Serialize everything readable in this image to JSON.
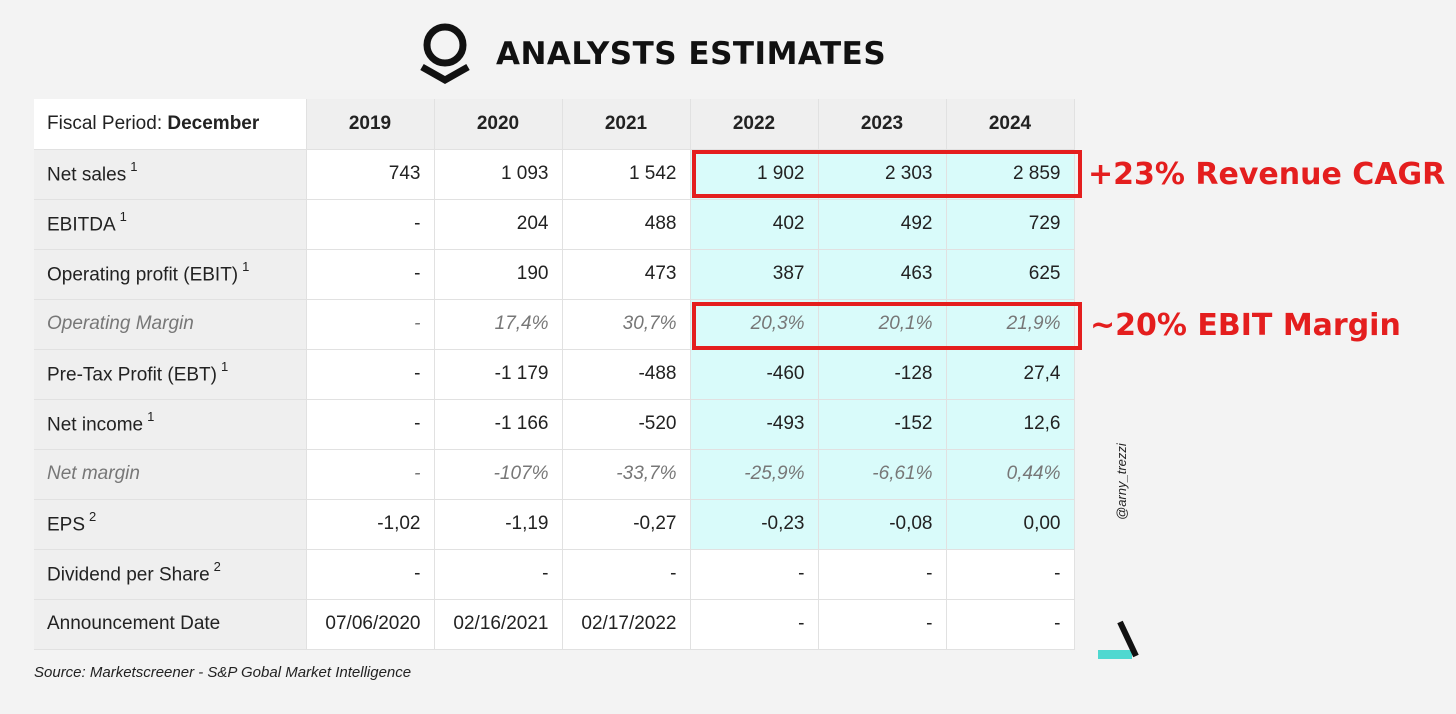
{
  "header": {
    "title": "ANALYSTS ESTIMATES",
    "logo_icon": "palantir-logo-icon"
  },
  "table": {
    "header_prefix": "Fiscal Period: ",
    "header_bold": "December",
    "years": [
      "2019",
      "2020",
      "2021",
      "2022",
      "2023",
      "2024"
    ],
    "rows": [
      {
        "label": "Net sales",
        "sup": "1",
        "style": "normal",
        "values": [
          "743",
          "1 093",
          "1 542",
          "1 902",
          "2 303",
          "2 859"
        ]
      },
      {
        "label": "EBITDA",
        "sup": "1",
        "style": "normal",
        "values": [
          "-",
          "204",
          "488",
          "402",
          "492",
          "729"
        ]
      },
      {
        "label": "Operating profit (EBIT)",
        "sup": "1",
        "style": "normal",
        "values": [
          "-",
          "190",
          "473",
          "387",
          "463",
          "625"
        ]
      },
      {
        "label": "Operating Margin",
        "sup": "",
        "style": "italic",
        "values": [
          "-",
          "17,4%",
          "30,7%",
          "20,3%",
          "20,1%",
          "21,9%"
        ]
      },
      {
        "label": "Pre-Tax Profit (EBT)",
        "sup": "1",
        "style": "normal",
        "values": [
          "-",
          "-1 179",
          "-488",
          "-460",
          "-128",
          "27,4"
        ]
      },
      {
        "label": "Net income",
        "sup": "1",
        "style": "normal",
        "values": [
          "-",
          "-1 166",
          "-520",
          "-493",
          "-152",
          "12,6"
        ]
      },
      {
        "label": "Net margin",
        "sup": "",
        "style": "italic",
        "values": [
          "-",
          "-107%",
          "-33,7%",
          "-25,9%",
          "-6,61%",
          "0,44%"
        ]
      },
      {
        "label": "EPS",
        "sup": "2",
        "style": "normal",
        "values": [
          "-1,02",
          "-1,19",
          "-0,27",
          "-0,23",
          "-0,08",
          "0,00"
        ]
      },
      {
        "label": "Dividend per Share",
        "sup": "2",
        "style": "normal",
        "values": [
          "-",
          "-",
          "-",
          "-",
          "-",
          "-"
        ]
      },
      {
        "label": "Announcement Date",
        "sup": "",
        "style": "normal",
        "values": [
          "07/06/2020",
          "02/16/2021",
          "02/17/2022",
          "-",
          "-",
          "-"
        ]
      }
    ],
    "highlight_color": "#d9fbfa"
  },
  "annotations": {
    "revenue": "+23% Revenue CAGR",
    "margin": "~20% EBIT Margin",
    "color": "#e41e1e"
  },
  "handle": "@arny_trezzi",
  "source": "Source: Marketscreener - S&P Gobal Market Intelligence"
}
